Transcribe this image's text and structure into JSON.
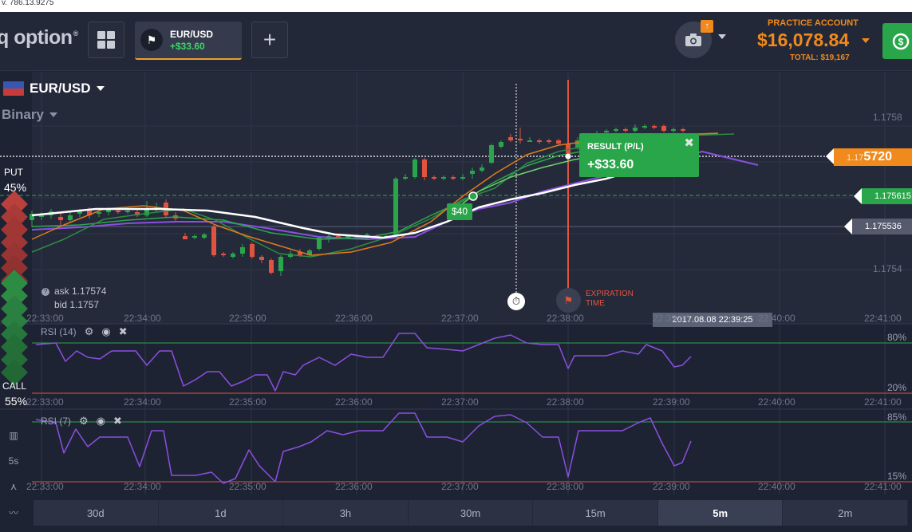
{
  "topstrip_text": "v. 786.13.9275",
  "header": {
    "logo_text": "q option",
    "logo_mark": "®",
    "asset_tab": {
      "name": "EUR/USD",
      "profit": "+$33.60"
    },
    "add_tab_label": "+",
    "account": {
      "label": "PRACTICE ACCOUNT",
      "balance": "$16,078.84",
      "total": "TOTAL: $19,167"
    }
  },
  "asset_selector": {
    "name": "EUR/USD"
  },
  "mode": "Binary",
  "put": {
    "label": "PUT",
    "pct": "45%"
  },
  "call": {
    "label": "CALL",
    "pct": "55%"
  },
  "quote": {
    "ask": "ask 1.17574",
    "bid": "bid 1.1757"
  },
  "price_axis": {
    "top": "1.1758",
    "bottom": "1.1754"
  },
  "price_tags": {
    "current_prefix": "1.17",
    "current_suffix": "5720",
    "strike": "1.175615",
    "other": "1.175536"
  },
  "result": {
    "title": "RESULT (P/L)",
    "value": "+$33.60",
    "close": "✖"
  },
  "trade_tag": "$40",
  "expiration": {
    "line1": "EXPIRATION",
    "line2": "TIME"
  },
  "time_tooltip": "2017.08.08 22:39:25",
  "time_labels": [
    "22:33:00",
    "22:34:00",
    "22:35:00",
    "22:36:00",
    "22:37:00",
    "22:38:00",
    "22:39:00",
    "22:40:00",
    "22:41:00"
  ],
  "rsi14": {
    "title": "RSI (14)",
    "upper": "80%",
    "lower": "20%"
  },
  "rsi7": {
    "title": "RSI (7)",
    "upper": "85%",
    "lower": "15%"
  },
  "side_tools": {
    "interval": "5s"
  },
  "timeframes": [
    "30d",
    "1d",
    "3h",
    "30m",
    "15m",
    "5m",
    "2m"
  ],
  "active_timeframe": "5m",
  "colors": {
    "accent": "#f08a1c",
    "up": "#2aa64a",
    "down": "#e0533e",
    "rsi": "#8a4fe0"
  }
}
